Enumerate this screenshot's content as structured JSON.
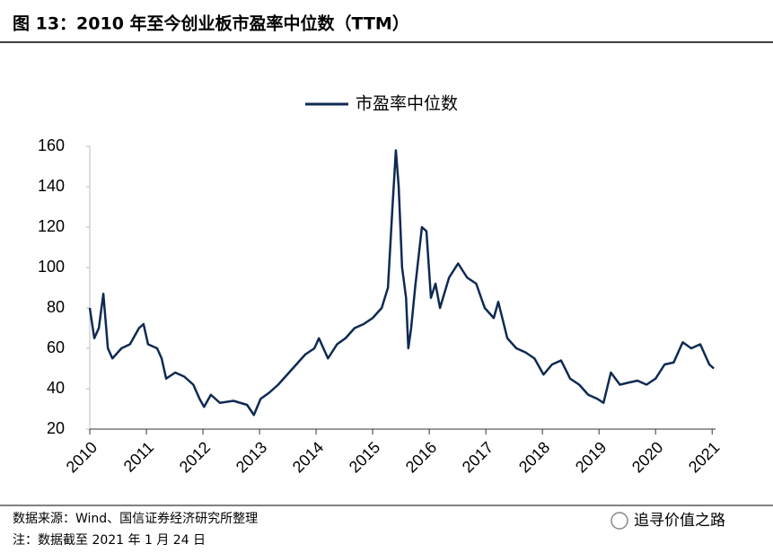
{
  "header": {
    "title": "图 13：2010 年至今创业板市盈率中位数（TTM）"
  },
  "chart_data": {
    "type": "line",
    "x": [
      2010.0,
      2010.08,
      2010.16,
      2010.24,
      2010.32,
      2010.4,
      2010.56,
      2010.71,
      2010.87,
      2010.95,
      2011.03,
      2011.19,
      2011.27,
      2011.35,
      2011.51,
      2011.67,
      2011.83,
      2011.94,
      2012.02,
      2012.14,
      2012.3,
      2012.54,
      2012.78,
      2012.9,
      2013.02,
      2013.17,
      2013.33,
      2013.49,
      2013.65,
      2013.81,
      2013.97,
      2014.05,
      2014.21,
      2014.37,
      2014.52,
      2014.68,
      2014.84,
      2015.0,
      2015.16,
      2015.27,
      2015.35,
      2015.41,
      2015.46,
      2015.52,
      2015.59,
      2015.63,
      2015.68,
      2015.75,
      2015.81,
      2015.87,
      2015.95,
      2016.03,
      2016.11,
      2016.19,
      2016.35,
      2016.51,
      2016.67,
      2016.83,
      2016.98,
      2017.14,
      2017.22,
      2017.38,
      2017.54,
      2017.7,
      2017.86,
      2018.02,
      2018.17,
      2018.33,
      2018.49,
      2018.65,
      2018.81,
      2018.97,
      2019.08,
      2019.21,
      2019.37,
      2019.52,
      2019.68,
      2019.84,
      2020.0,
      2020.16,
      2020.32,
      2020.48,
      2020.63,
      2020.79,
      2020.95,
      2021.03
    ],
    "series": [
      {
        "name": "市盈率中位数",
        "color": "#0e2a52",
        "values": [
          80,
          65,
          70,
          87,
          60,
          55,
          60,
          62,
          70,
          72,
          62,
          60,
          55,
          45,
          48,
          46,
          42,
          35,
          31,
          37,
          33,
          34,
          32,
          27,
          35,
          38,
          42,
          47,
          52,
          57,
          60,
          65,
          55,
          62,
          65,
          70,
          72,
          75,
          80,
          90,
          130,
          158,
          140,
          100,
          85,
          60,
          70,
          90,
          105,
          120,
          118,
          85,
          92,
          80,
          95,
          102,
          95,
          92,
          80,
          75,
          83,
          65,
          60,
          58,
          55,
          47,
          52,
          54,
          45,
          42,
          37,
          35,
          33,
          48,
          42,
          43,
          44,
          42,
          45,
          52,
          53,
          63,
          60,
          62,
          52,
          50
        ]
      }
    ],
    "xlim": [
      2010,
      2021.06
    ],
    "xticks": [
      2010,
      2011,
      2012,
      2013,
      2014,
      2015,
      2016,
      2017,
      2018,
      2019,
      2020,
      2021
    ],
    "ylim": [
      20,
      160
    ],
    "yticks": [
      20,
      40,
      60,
      80,
      100,
      120,
      140,
      160
    ]
  },
  "footer": {
    "source": "数据来源：Wind、国信证券经济研究所整理",
    "note": "注：数据截至 2021 年 1 月 24 日",
    "watermark": "追寻价值之路"
  }
}
